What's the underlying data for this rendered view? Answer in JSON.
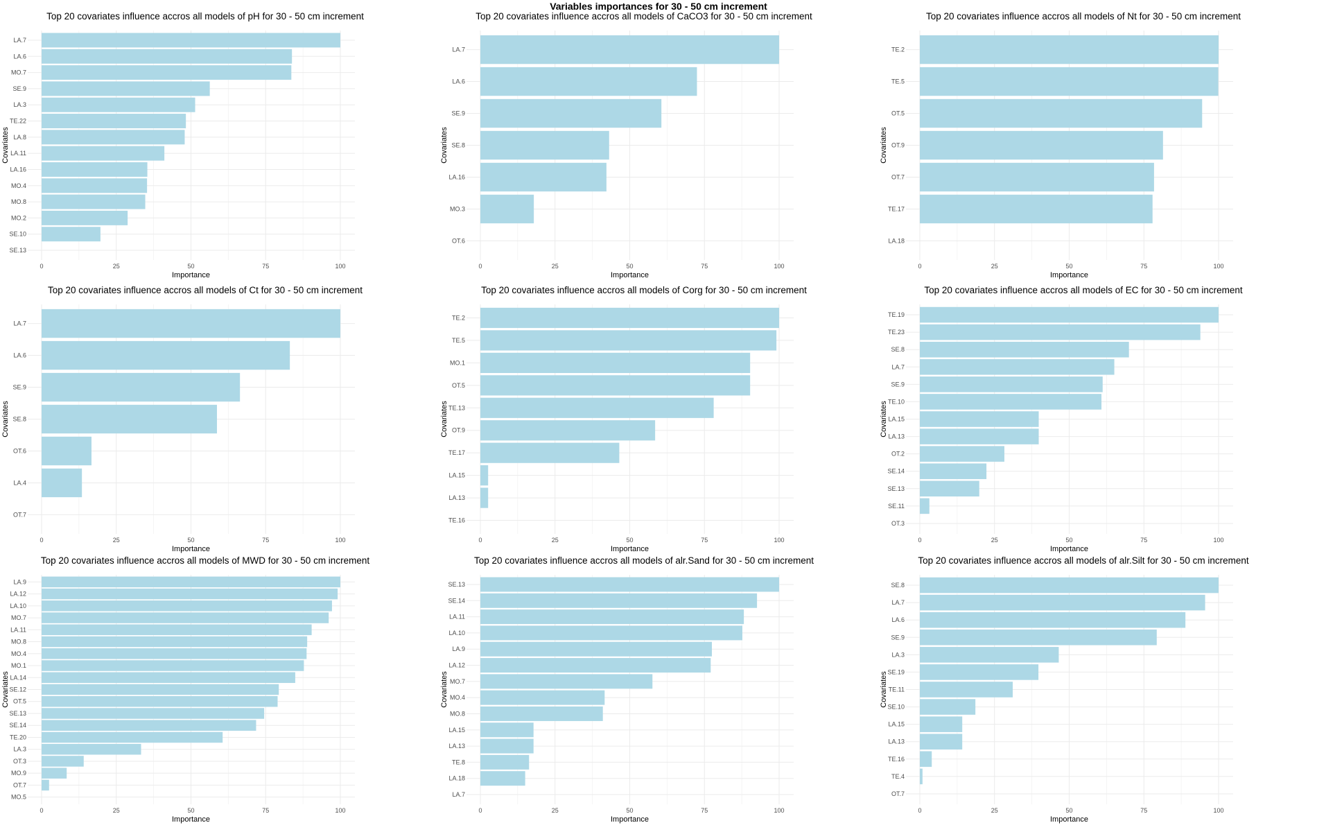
{
  "title": "Variables importances for 30 - 50 cm increment",
  "chart_data": [
    {
      "type": "bar",
      "orientation": "horizontal",
      "title": "Top 20 covariates influence accros all models of pH for 30 - 50 cm increment",
      "xlabel": "Importance",
      "ylabel": "Covariates",
      "xlim": [
        0,
        100
      ],
      "xticks": [
        "0",
        "25",
        "50",
        "75",
        "100"
      ],
      "grid": true,
      "bar_color": "#add8e6",
      "categories": [
        "LA.7",
        "LA.6",
        "MO.7",
        "SE.9",
        "LA.3",
        "TE.22",
        "LA.8",
        "LA.11",
        "LA.16",
        "MO.4",
        "MO.8",
        "MO.2",
        "SE.10",
        "SE.13"
      ],
      "values": [
        100,
        83.8,
        83.6,
        56.3,
        51.4,
        48.3,
        47.9,
        41.1,
        35.4,
        35.3,
        34.7,
        28.8,
        19.7,
        0
      ]
    },
    {
      "type": "bar",
      "orientation": "horizontal",
      "title": "Top 20 covariates influence accros all models of CaCO3 for 30 - 50 cm increment",
      "xlabel": "Importance",
      "ylabel": "Covariates",
      "xlim": [
        0,
        100
      ],
      "xticks": [
        "0",
        "25",
        "50",
        "75",
        "100"
      ],
      "grid": true,
      "bar_color": "#add8e6",
      "categories": [
        "LA.7",
        "LA.6",
        "SE.9",
        "SE.8",
        "LA.16",
        "MO.3",
        "OT.6"
      ],
      "values": [
        100,
        72.5,
        60.6,
        43.1,
        42.2,
        17.9,
        0
      ]
    },
    {
      "type": "bar",
      "orientation": "horizontal",
      "title": "Top 20 covariates influence accros all models of Nt for 30 - 50 cm increment",
      "xlabel": "Importance",
      "ylabel": "Covariates",
      "xlim": [
        0,
        100
      ],
      "xticks": [
        "0",
        "25",
        "50",
        "75",
        "100"
      ],
      "grid": true,
      "bar_color": "#add8e6",
      "categories": [
        "TE.2",
        "TE.5",
        "OT.5",
        "OT.9",
        "OT.7",
        "TE.17",
        "LA.18"
      ],
      "values": [
        100,
        99.9,
        94.5,
        81.4,
        78.4,
        77.9,
        0
      ]
    },
    {
      "type": "bar",
      "orientation": "horizontal",
      "title": "Top 20 covariates influence accros all models of Ct for 30 - 50 cm increment",
      "xlabel": "Importance",
      "ylabel": "Covariates",
      "xlim": [
        0,
        100
      ],
      "xticks": [
        "0",
        "25",
        "50",
        "75",
        "100"
      ],
      "grid": true,
      "bar_color": "#add8e6",
      "categories": [
        "LA.7",
        "LA.6",
        "SE.9",
        "SE.8",
        "OT.6",
        "LA.4",
        "OT.7"
      ],
      "values": [
        100,
        83.1,
        66.4,
        58.7,
        16.7,
        13.5,
        0
      ]
    },
    {
      "type": "bar",
      "orientation": "horizontal",
      "title": "Top 20 covariates influence accros all models of Corg for 30 - 50 cm increment",
      "xlabel": "Importance",
      "ylabel": "Covariates",
      "xlim": [
        0,
        100
      ],
      "xticks": [
        "0",
        "25",
        "50",
        "75",
        "100"
      ],
      "grid": true,
      "bar_color": "#add8e6",
      "categories": [
        "TE.2",
        "TE.5",
        "MO.1",
        "OT.5",
        "TE.13",
        "OT.9",
        "TE.17",
        "LA.15",
        "LA.13",
        "TE.16"
      ],
      "values": [
        100,
        99.1,
        90.3,
        90.3,
        78.1,
        58.5,
        46.5,
        2.6,
        2.6,
        0
      ]
    },
    {
      "type": "bar",
      "orientation": "horizontal",
      "title": "Top 20 covariates influence accros all models of EC for 30 - 50 cm increment",
      "xlabel": "Importance",
      "ylabel": "Covariates",
      "xlim": [
        0,
        100
      ],
      "xticks": [
        "0",
        "25",
        "50",
        "75",
        "100"
      ],
      "grid": true,
      "bar_color": "#add8e6",
      "categories": [
        "TE.19",
        "TE.23",
        "SE.8",
        "LA.7",
        "SE.9",
        "TE.10",
        "LA.15",
        "LA.13",
        "OT.2",
        "SE.14",
        "SE.13",
        "SE.11",
        "OT.3"
      ],
      "values": [
        100,
        93.9,
        70.0,
        65.1,
        61.2,
        60.8,
        39.8,
        39.8,
        28.3,
        22.3,
        19.9,
        3.2,
        0
      ]
    },
    {
      "type": "bar",
      "orientation": "horizontal",
      "title": "Top 20 covariates influence accros all models of MWD for 30 - 50 cm increment",
      "xlabel": "Importance",
      "ylabel": "Covariates",
      "xlim": [
        0,
        100
      ],
      "xticks": [
        "0",
        "25",
        "50",
        "75",
        "100"
      ],
      "grid": true,
      "bar_color": "#add8e6",
      "categories": [
        "LA.9",
        "LA.12",
        "LA.10",
        "MO.7",
        "LA.11",
        "MO.8",
        "MO.4",
        "MO.1",
        "LA.14",
        "SE.12",
        "OT.5",
        "SE.13",
        "SE.14",
        "TE.20",
        "LA.3",
        "OT.3",
        "MO.9",
        "OT.7",
        "MO.5"
      ],
      "values": [
        100,
        99.1,
        97.2,
        96.1,
        90.4,
        88.9,
        88.7,
        87.8,
        84.9,
        79.4,
        79.0,
        74.5,
        71.8,
        60.6,
        33.3,
        14.1,
        8.4,
        2.5,
        0
      ]
    },
    {
      "type": "bar",
      "orientation": "horizontal",
      "title": "Top 20 covariates influence accros all models of alr.Sand for 30 - 50 cm increment",
      "xlabel": "Importance",
      "ylabel": "Covariates",
      "xlim": [
        0,
        100
      ],
      "xticks": [
        "0",
        "25",
        "50",
        "75",
        "100"
      ],
      "grid": true,
      "bar_color": "#add8e6",
      "categories": [
        "SE.13",
        "SE.14",
        "LA.11",
        "LA.10",
        "LA.9",
        "LA.12",
        "MO.7",
        "MO.4",
        "MO.8",
        "LA.15",
        "LA.13",
        "TE.8",
        "LA.18",
        "LA.7"
      ],
      "values": [
        100,
        92.6,
        88.2,
        87.7,
        77.5,
        77.1,
        57.6,
        41.6,
        41.0,
        17.8,
        17.8,
        16.3,
        15.0,
        0
      ]
    },
    {
      "type": "bar",
      "orientation": "horizontal",
      "title": "Top 20 covariates influence accros all models of alr.Silt for 30 - 50 cm increment",
      "xlabel": "Importance",
      "ylabel": "Covariates",
      "xlim": [
        0,
        100
      ],
      "xticks": [
        "0",
        "25",
        "50",
        "75",
        "100"
      ],
      "grid": true,
      "bar_color": "#add8e6",
      "categories": [
        "SE.8",
        "LA.7",
        "LA.6",
        "SE.9",
        "LA.3",
        "SE.19",
        "TE.11",
        "SE.10",
        "LA.15",
        "LA.13",
        "TE.16",
        "TE.4",
        "OT.7"
      ],
      "values": [
        100,
        95.5,
        88.9,
        79.3,
        46.5,
        39.7,
        31.1,
        18.6,
        14.2,
        14.2,
        4.0,
        0.9,
        0
      ]
    }
  ]
}
